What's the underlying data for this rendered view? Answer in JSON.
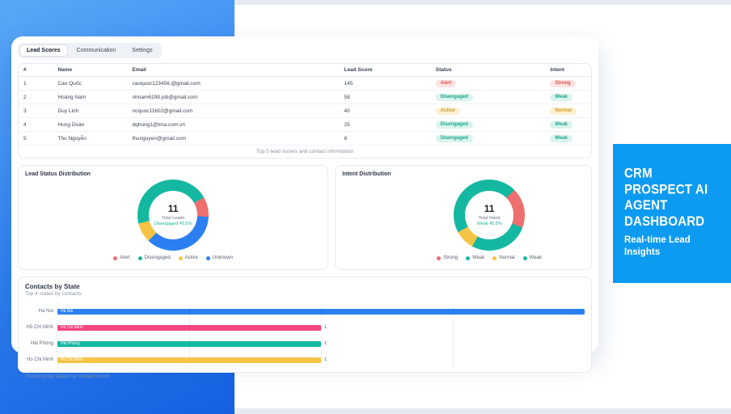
{
  "tabs": [
    {
      "label": "Lead Scores",
      "active": true
    },
    {
      "label": "Communication",
      "active": false
    },
    {
      "label": "Settings",
      "active": false
    }
  ],
  "table": {
    "headers": [
      "#",
      "Name",
      "Email",
      "Lead Score",
      "Status",
      "Intent"
    ],
    "rows": [
      {
        "num": "1",
        "name": "Cao Quốc",
        "email": "caoquoc123456.@gmail.com",
        "score": "145",
        "status": "Alert",
        "status_type": "red",
        "intent": "Strong",
        "intent_type": "red"
      },
      {
        "num": "2",
        "name": "Hoàng Nam",
        "email": "nhnam6199.job@gmail.com",
        "score": "58",
        "status": "Disengaged",
        "status_type": "teal",
        "intent": "Weak",
        "intent_type": "teal"
      },
      {
        "num": "3",
        "name": "Duy Linh",
        "email": "ncquoc11602@gmail.com",
        "score": "40",
        "status": "Active",
        "status_type": "yellow",
        "intent": "Normal",
        "intent_type": "yellow"
      },
      {
        "num": "4",
        "name": "Hung Doàn",
        "email": "dqhung1@tma.com.vn",
        "score": "25",
        "status": "Disengaged",
        "status_type": "teal",
        "intent": "Weak",
        "intent_type": "teal"
      },
      {
        "num": "5",
        "name": "Thu Nguyễn",
        "email": "thunguyen@gmail.com",
        "score": "8",
        "status": "Disengaged",
        "status_type": "teal",
        "intent": "Weak",
        "intent_type": "teal"
      }
    ],
    "footer": "Top 5 lead scores and contact information"
  },
  "side_panel": {
    "title_line1": "CRM Prospect AI",
    "title_line2": "Agent Dashboard",
    "subtitle": "Real-time Lead Insights",
    "background": "#0d9bf2"
  },
  "palette": {
    "red": "#ee6f6f",
    "teal": "#14b8a0",
    "yellow": "#f6c445",
    "blue": "#2b7ff2",
    "pink": "#f2467e",
    "left_gradient_start": "#5aa8f7",
    "left_gradient_end": "#1560e0"
  },
  "chart_data": [
    {
      "type": "pie",
      "title": "Lead Status Distribution",
      "total": "11",
      "total_label": "Total Leads",
      "highlight": "Disengaged 45.5%",
      "start_angle": 60,
      "segments": [
        {
          "label": "Alert",
          "value": 1,
          "color": "#ee6f6f"
        },
        {
          "label": "Unknown",
          "value": 4,
          "color": "#2b7ff2"
        },
        {
          "label": "Active",
          "value": 1,
          "color": "#f6c445"
        },
        {
          "label": "Disengaged",
          "value": 5,
          "color": "#14b8a0"
        }
      ],
      "legend": [
        {
          "label": "Alert",
          "color": "#ee6f6f"
        },
        {
          "label": "Disengaged",
          "color": "#14b8a0"
        },
        {
          "label": "Active",
          "color": "#f6c445"
        },
        {
          "label": "Unknown",
          "color": "#2b7ff2"
        }
      ]
    },
    {
      "type": "pie",
      "title": "Intent Distribution",
      "total": "11",
      "total_label": "Total Intent",
      "highlight": "Weak 45.5%",
      "start_angle": 45,
      "segments": [
        {
          "label": "Strong",
          "value": 2,
          "color": "#ee6f6f"
        },
        {
          "label": "weak",
          "value": 3,
          "color": "#14b8a0"
        },
        {
          "label": "Normal",
          "value": 1,
          "color": "#f6c445"
        },
        {
          "label": "Weak",
          "value": 5,
          "color": "#14b8a0"
        }
      ],
      "legend": [
        {
          "label": "Strong",
          "color": "#ee6f6f"
        },
        {
          "label": "Weak",
          "color": "#14b8a0"
        },
        {
          "label": "Normal",
          "color": "#f6c445"
        },
        {
          "label": "Weak",
          "color": "#14b8a0"
        }
      ]
    },
    {
      "type": "bar",
      "title": "Contacts by State",
      "subtitle": "Top 4 states by contacts",
      "footer": "Showing top states by contact count",
      "axis_max": 2,
      "bars": [
        {
          "label": "Ha Noi",
          "bar_text": "Hà Nội",
          "value": 2,
          "value_label": "",
          "color": "#2b7ff2"
        },
        {
          "label": "Hồ Chí Minh",
          "bar_text": "Hồ Chí Minh",
          "value": 1,
          "value_label": "1",
          "color": "#f2467e"
        },
        {
          "label": "Hải Phòng",
          "bar_text": "Hải Phòng",
          "value": 1,
          "value_label": "1",
          "color": "#14b8a0"
        },
        {
          "label": "Ho Chi Minh",
          "bar_text": "Ho Chi Minh",
          "value": 1,
          "value_label": "1",
          "color": "#f6c445"
        }
      ]
    }
  ]
}
